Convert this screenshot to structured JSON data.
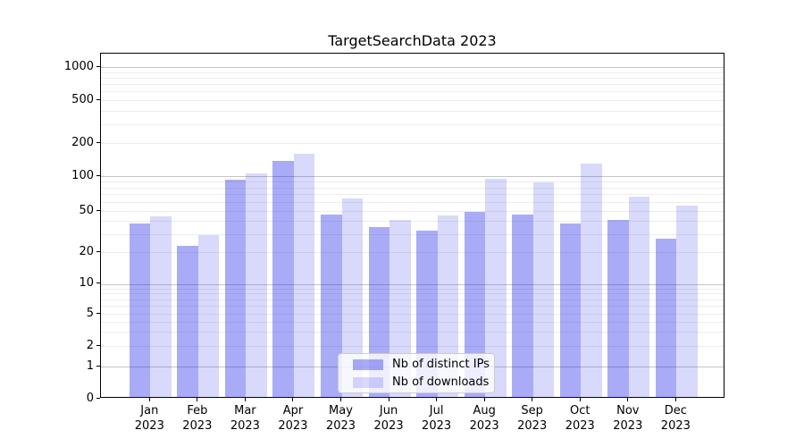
{
  "title": "TargetSearchData 2023",
  "legend": {
    "items": [
      {
        "label": "Nb of distinct IPs",
        "swatch_color": "rgba(8,12,232,0.345)"
      },
      {
        "label": "Nb of downloads",
        "swatch_color": "rgba(8,12,232,0.155)"
      }
    ]
  },
  "colors": {
    "bar_ips": "rgba(8,12,232,0.345)",
    "bar_downloads": "rgba(8,12,232,0.155)",
    "bar_ips_on_white": "#a9abf7",
    "bar_downloads_on_white": "#d9dcfb",
    "major_grid": "#c6c6c6",
    "minor_grid": "#ededed",
    "spine": "#000000",
    "background": "#ffffff"
  },
  "y_axis": {
    "tick_labels": [
      "0",
      "1",
      "2",
      "5",
      "10",
      "20",
      "50",
      "100",
      "200",
      "500",
      "1000"
    ]
  },
  "x_axis": {
    "ticks": [
      {
        "month": "Jan",
        "year": "2023"
      },
      {
        "month": "Feb",
        "year": "2023"
      },
      {
        "month": "Mar",
        "year": "2023"
      },
      {
        "month": "Apr",
        "year": "2023"
      },
      {
        "month": "May",
        "year": "2023"
      },
      {
        "month": "Jun",
        "year": "2023"
      },
      {
        "month": "Jul",
        "year": "2023"
      },
      {
        "month": "Aug",
        "year": "2023"
      },
      {
        "month": "Sep",
        "year": "2023"
      },
      {
        "month": "Oct",
        "year": "2023"
      },
      {
        "month": "Nov",
        "year": "2023"
      },
      {
        "month": "Dec",
        "year": "2023"
      }
    ]
  },
  "chart_data": {
    "type": "bar",
    "title": "TargetSearchData 2023",
    "categories": [
      "Jan 2023",
      "Feb 2023",
      "Mar 2023",
      "Apr 2023",
      "May 2023",
      "Jun 2023",
      "Jul 2023",
      "Aug 2023",
      "Sep 2023",
      "Oct 2023",
      "Nov 2023",
      "Dec 2023"
    ],
    "series": [
      {
        "name": "Nb of distinct IPs",
        "values": [
          38,
          23,
          93,
          138,
          46,
          35,
          32,
          49,
          46,
          38,
          41,
          27
        ]
      },
      {
        "name": "Nb of downloads",
        "values": [
          44,
          29,
          105,
          160,
          64,
          41,
          45,
          95,
          88,
          130,
          66,
          56
        ]
      }
    ],
    "xlabel": "",
    "ylabel": "",
    "yscale": "symlog",
    "y_ticks": [
      0,
      1,
      2,
      5,
      10,
      20,
      50,
      100,
      200,
      500,
      1000
    ],
    "ylim": [
      0,
      1400
    ],
    "grid": true,
    "legend_position": "lower center"
  }
}
